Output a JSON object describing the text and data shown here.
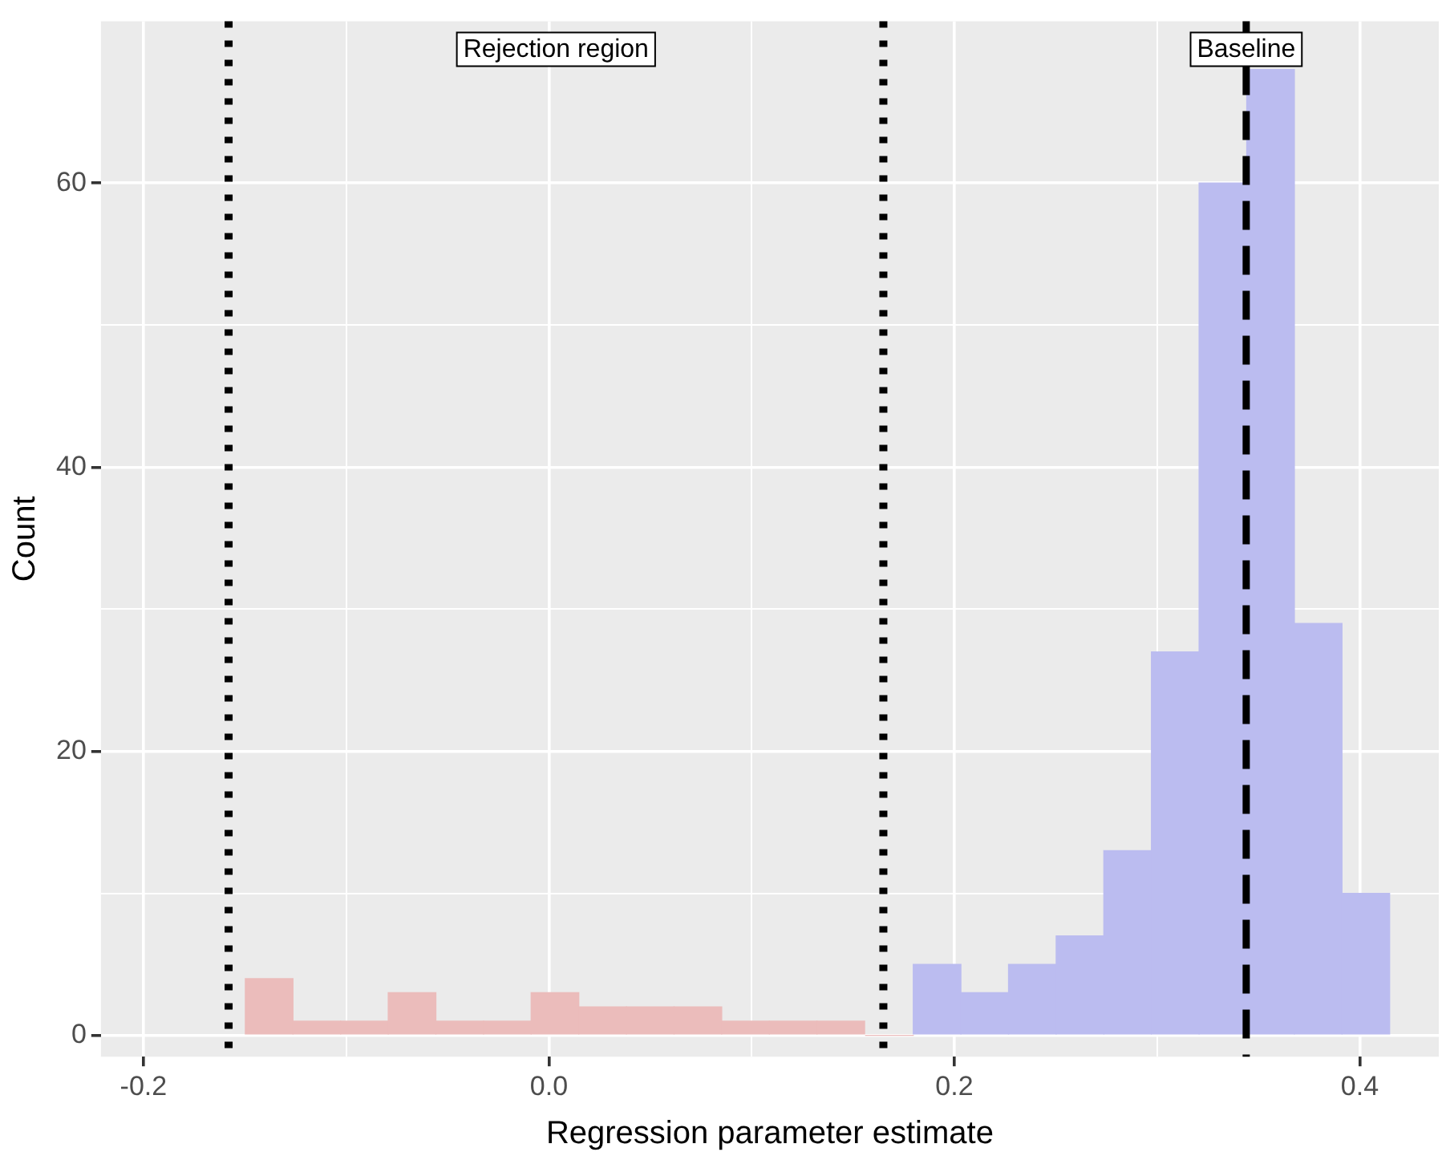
{
  "chart_data": {
    "type": "histogram",
    "xlabel": "Regression parameter estimate",
    "ylabel": "Count",
    "bins": [
      -0.15,
      -0.126,
      -0.103,
      -0.079,
      -0.056,
      -0.032,
      -0.009,
      0.015,
      0.038,
      0.062,
      0.085,
      0.109,
      0.132,
      0.156,
      0.18,
      0.203,
      0.227,
      0.25,
      0.274,
      0.297,
      0.321,
      0.344,
      0.368,
      0.391,
      0.415
    ],
    "values": [
      4,
      1,
      1,
      3,
      1,
      1,
      3,
      2,
      2,
      2,
      1,
      1,
      1,
      0,
      5,
      3,
      5,
      7,
      13,
      27,
      60,
      68,
      29,
      10
    ],
    "colors": [
      "#ebbcbb",
      "#ebbcbb",
      "#ebbcbb",
      "#ebbcbb",
      "#ebbcbb",
      "#ebbcbb",
      "#ebbcbb",
      "#ebbcbb",
      "#ebbcbb",
      "#ebbcbb",
      "#ebbcbb",
      "#ebbcbb",
      "#ebbcbb",
      "#ebbcbb",
      "#bbbcf0",
      "#bbbcf0",
      "#bbbcf0",
      "#bbbcf0",
      "#bbbcf0",
      "#bbbcf0",
      "#bbbcf0",
      "#bbbcf0",
      "#bbbcf0",
      "#bbbcf0"
    ],
    "xlim": [
      -0.221,
      0.439
    ],
    "ylim": [
      -1.5,
      71.4
    ],
    "xticks": [
      {
        "value": -0.2,
        "label": "-0.2"
      },
      {
        "value": -0.1,
        "label": null
      },
      {
        "value": 0,
        "label": "0.0"
      },
      {
        "value": 0.1,
        "label": null
      },
      {
        "value": 0.2,
        "label": "0.2"
      },
      {
        "value": 0.3,
        "label": null
      },
      {
        "value": 0.4,
        "label": "0.4"
      }
    ],
    "yticks": [
      0,
      {
        "value": 10,
        "label": null
      },
      20,
      {
        "value": 30,
        "label": null
      },
      40,
      {
        "value": 50,
        "label": null
      },
      60
    ],
    "grid": true,
    "legend": false,
    "ref_lines": [
      {
        "axis": "x",
        "value": -0.158,
        "color": "#000000",
        "line_style": "dotted"
      },
      {
        "axis": "x",
        "value": 0.165,
        "color": "#000000",
        "line_style": "dotted"
      },
      {
        "axis": "x",
        "value": 0.344,
        "label": "Baseline",
        "color": "#000000",
        "line_style": "dashed"
      }
    ],
    "annotations": [
      "Rejection region"
    ]
  }
}
